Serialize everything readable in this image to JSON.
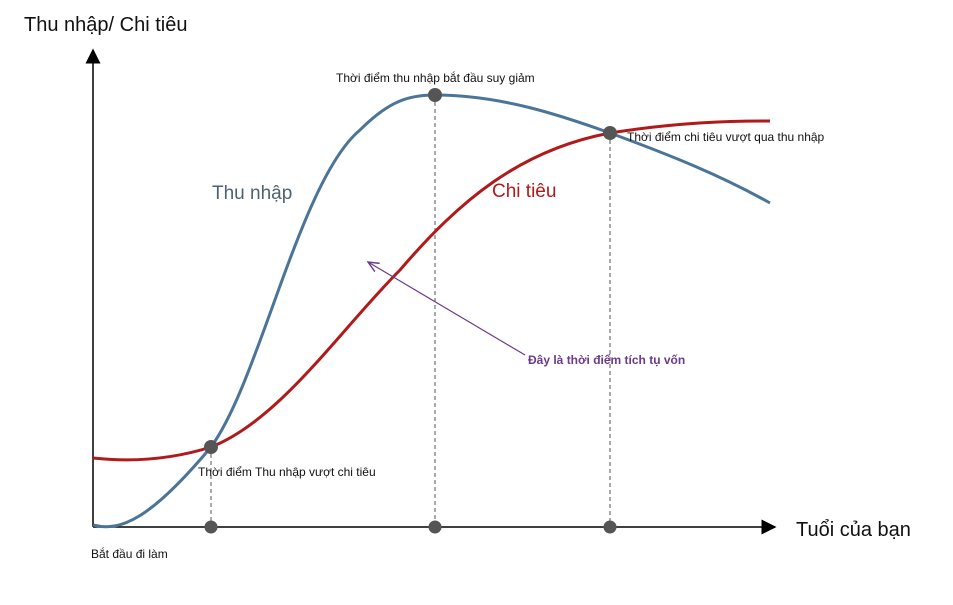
{
  "axes": {
    "y_label": "Thu nhập/ Chi tiêu",
    "x_label": "Tuổi của bạn"
  },
  "curves": {
    "income": "Thu nhập",
    "spending": "Chi tiêu"
  },
  "annotations": {
    "income_peak": "Thời điểm thu nhập bắt đầu suy giảm",
    "spending_overtakes": "Thời điểm chi tiêu vượt qua thu nhập",
    "accumulation": "Đây là thời điểm tích tụ vốn",
    "income_overtakes": "Thời điểm Thu nhập vượt chi tiêu",
    "start_work": "Bắt đầu đi làm"
  }
}
